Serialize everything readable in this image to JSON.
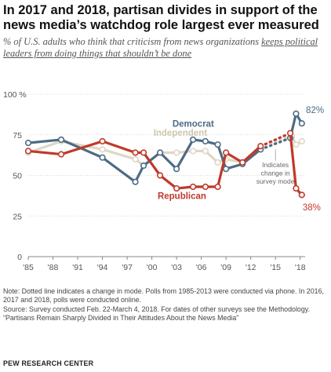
{
  "header": {
    "title": "In 2017 and 2018, partisan divides in support of the news media’s watchdog role largest ever measured",
    "subtitle_before": "% of U.S. adults who think that criticism from news organizations ",
    "subtitle_underlined": "keeps political leaders from doing things that shouldn’t be done"
  },
  "chart_data": {
    "type": "line",
    "y_unit_label": "100 %",
    "ylim": [
      0,
      100
    ],
    "yticks": [
      "0",
      "25",
      "50",
      "75",
      "100 %"
    ],
    "y_tick_values": [
      0,
      25,
      50,
      75,
      100
    ],
    "x_tick_values": [
      1985,
      1988,
      1991,
      1994,
      1997,
      2000,
      2003,
      2006,
      2009,
      2012,
      2015,
      2018
    ],
    "xticks": [
      "'85",
      "'88",
      "'91",
      "'94",
      "'97",
      "'00",
      "'03",
      "'06",
      "'09",
      "'12",
      "'15",
      "'18"
    ],
    "xlim": [
      1985,
      2018.6
    ],
    "grid": "horizontal",
    "series": [
      {
        "name": "Independent",
        "color": "#ded7c5",
        "x": [
          1985,
          1989,
          1994,
          1998,
          1999,
          2001,
          2003,
          2005,
          2006.5,
          2008,
          2009,
          2011,
          2013.2,
          2017,
          2017.5,
          2018.2
        ],
        "y": [
          64,
          71,
          66,
          60,
          56,
          64,
          64,
          65,
          65,
          58,
          60,
          58,
          68,
          74,
          69,
          71
        ],
        "solid_until_index": 12,
        "label": "Independent"
      },
      {
        "name": "Democrat",
        "color": "#4d6b85",
        "x": [
          1985,
          1989,
          1994,
          1998,
          1999,
          2001,
          2003,
          2005,
          2006.5,
          2008,
          2009,
          2011,
          2013.2,
          2016.8,
          2017.5,
          2018.2
        ],
        "y": [
          70,
          72,
          61,
          46,
          56,
          64,
          54,
          72,
          71,
          69,
          54,
          57,
          66,
          73,
          88,
          82
        ],
        "solid_until_index": 12,
        "label": "Democrat",
        "end_label": "82%"
      },
      {
        "name": "Republican",
        "color": "#c0392b",
        "x": [
          1985,
          1989,
          1994,
          1998,
          1999,
          2001,
          2003,
          2005,
          2006.5,
          2008,
          2009,
          2011,
          2013.2,
          2016.8,
          2017.5,
          2018.2
        ],
        "y": [
          65,
          63,
          71,
          64,
          64,
          50,
          42,
          43,
          43,
          43,
          64,
          58,
          68,
          76,
          42,
          38
        ],
        "solid_until_index": 12,
        "label": "Republican",
        "end_label": "38%"
      }
    ],
    "annotation": "Indicates change in survey mode"
  },
  "footer": {
    "note": "Note: Dotted line indicates a change in mode. Polls from 1985-2013 were conducted via phone. In 2016, 2017 and 2018, polls were conducted online.",
    "source": "Source: Survey conducted Feb. 22-March 4, 2018. For dates of other surveys see the Methodology.",
    "report": "“Partisans Remain Sharply Divided in Their Attitudes About the News Media”",
    "org": "PEW RESEARCH CENTER"
  }
}
